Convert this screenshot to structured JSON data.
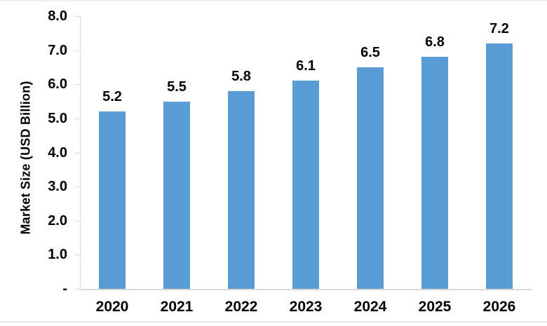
{
  "chart_data": {
    "type": "bar",
    "categories": [
      "2020",
      "2021",
      "2022",
      "2023",
      "2024",
      "2025",
      "2026"
    ],
    "values": [
      5.2,
      5.5,
      5.8,
      6.1,
      6.5,
      6.8,
      7.2
    ],
    "data_labels": [
      "5.2",
      "5.5",
      "5.8",
      "6.1",
      "6.5",
      "6.8",
      "7.2"
    ],
    "title": "",
    "xlabel": "",
    "ylabel": "Market Size (USD Billion)",
    "ylim": [
      0,
      8
    ],
    "y_tick_labels": [
      "8.0",
      "7.0",
      "6.0",
      "5.0",
      "4.0",
      "3.0",
      "2.0",
      "1.0",
      "-"
    ],
    "grid": false,
    "legend": "none",
    "bar_color": "#5B9BD5",
    "axis_color": "#D9D9D9",
    "text_color": "#000000"
  }
}
